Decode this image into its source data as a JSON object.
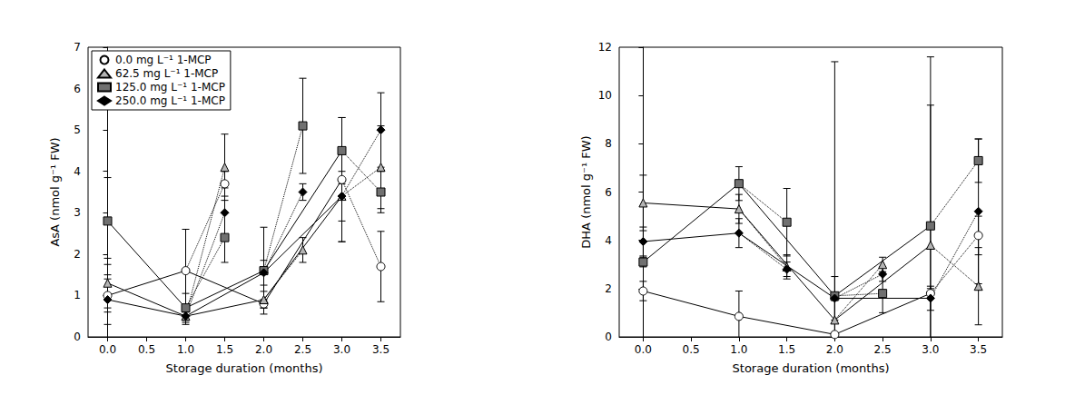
{
  "chart_data": [
    {
      "type": "line",
      "y_label": "AsA (nmol g⁻¹ FW)",
      "x_label": "Storage duration (months)",
      "x": [
        0,
        1,
        1.5,
        2,
        2.5,
        3,
        3.5
      ],
      "xlim": [
        -0.25,
        3.75
      ],
      "xticks": [
        {
          "value": 0,
          "label": "0.0"
        },
        0.5,
        {
          "value": 1,
          "label": "1.0"
        },
        1.5,
        {
          "value": 2,
          "label": "2.0"
        },
        2.5,
        {
          "value": 3,
          "label": "3.0"
        },
        3.5
      ],
      "ylim": [
        0,
        7
      ],
      "yticks": [
        0,
        1,
        2,
        3,
        4,
        5,
        6,
        7
      ],
      "grid": false,
      "legend": "upper left",
      "series": [
        {
          "name": "0.0 mg L⁻¹ 1-MCP",
          "color": "#ffffff",
          "marker": "circle",
          "values": [
            1.0,
            1.6,
            3.7,
            0.8,
            null,
            3.8,
            1.7
          ],
          "errors": [
            0.4,
            1.0,
            0.3,
            0.1,
            null,
            1.5,
            0.85
          ]
        },
        {
          "name": "62.5 mg L⁻¹ 1-MCP",
          "color": "#b4b4b4",
          "marker": "triangle",
          "values": [
            1.3,
            0.5,
            4.1,
            0.9,
            2.1,
            3.4,
            4.1
          ],
          "errors": [
            0.6,
            0.2,
            0.8,
            0.2,
            0.3,
            0.6,
            1.0
          ]
        },
        {
          "name": "125.0 mg L⁻¹ 1-MCP",
          "color": "#707070",
          "marker": "square",
          "values": [
            2.8,
            0.7,
            2.4,
            1.6,
            5.1,
            4.5,
            3.5
          ],
          "errors": [
            1.05,
            0.35,
            0.6,
            1.05,
            1.15,
            0.8,
            0.5
          ]
        },
        {
          "name": "250.0 mg L⁻¹ 1-MCP",
          "color": "#000000",
          "marker": "diamond",
          "values": [
            0.9,
            0.5,
            3.0,
            1.55,
            3.5,
            3.4,
            5.0
          ],
          "errors": [
            0.6,
            0.1,
            0.6,
            0.3,
            0.2,
            1.1,
            0.9
          ]
        }
      ]
    },
    {
      "type": "line",
      "y_label": "DHA (nmol g⁻¹ FW)",
      "x_label": "Storage duration (months)",
      "x": [
        0,
        1,
        1.5,
        2,
        2.5,
        3,
        3.5
      ],
      "xlim": [
        -0.25,
        3.75
      ],
      "xticks": [
        {
          "value": 0,
          "label": "0.0"
        },
        0.5,
        {
          "value": 1,
          "label": "1.0"
        },
        1.5,
        {
          "value": 2,
          "label": "2.0"
        },
        2.5,
        {
          "value": 3,
          "label": "3.0"
        },
        3.5
      ],
      "ylim": [
        0,
        12
      ],
      "yticks": [
        0,
        2,
        4,
        6,
        8,
        10,
        12
      ],
      "grid": false,
      "series": [
        {
          "name": "0.0 mg L⁻¹ 1-MCP",
          "color": "#ffffff",
          "marker": "circle",
          "values": [
            1.9,
            0.85,
            null,
            0.1,
            null,
            1.8,
            4.2
          ],
          "errors": [
            0.4,
            1.05,
            null,
            0.05,
            null,
            0.2,
            0.8
          ]
        },
        {
          "name": "62.5 mg L⁻¹ 1-MCP",
          "color": "#b4b4b4",
          "marker": "triangle",
          "values": [
            5.55,
            5.3,
            2.9,
            0.7,
            3.0,
            3.8,
            2.1
          ],
          "errors": [
            1.15,
            0.6,
            0.5,
            0.8,
            0.3,
            5.8,
            1.6
          ]
        },
        {
          "name": "125.0 mg L⁻¹ 1-MCP",
          "color": "#707070",
          "marker": "square",
          "values": [
            3.1,
            6.35,
            4.75,
            1.7,
            1.8,
            4.6,
            7.3
          ],
          "errors": [
            0.2,
            0.7,
            1.4,
            9.7,
            0.8,
            7.0,
            0.9
          ]
        },
        {
          "name": "250.0 mg L⁻¹ 1-MCP",
          "color": "#000000",
          "marker": "diamond",
          "values": [
            3.95,
            4.3,
            2.8,
            1.6,
            2.6,
            1.6,
            5.2
          ],
          "errors": [
            0.6,
            0.6,
            0.3,
            0.9,
            0.3,
            0.5,
            3.0
          ]
        }
      ]
    }
  ]
}
